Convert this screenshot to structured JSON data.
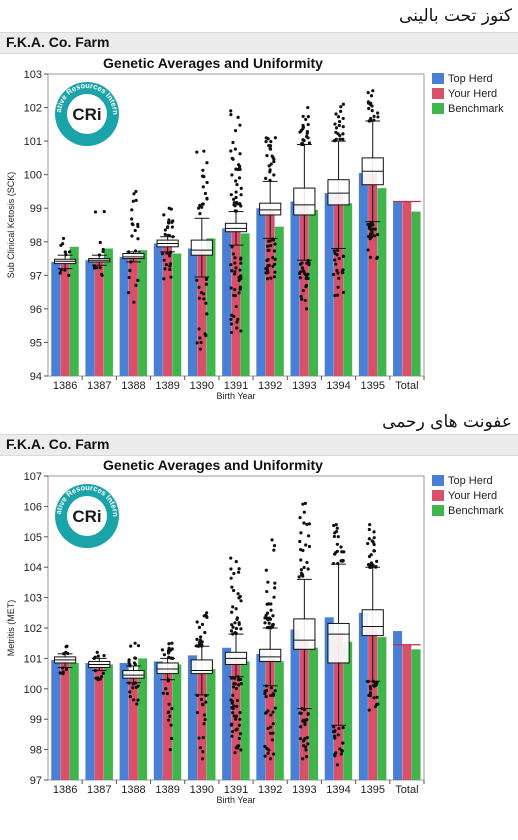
{
  "panels": [
    {
      "persian_title": "کتوز تحت بالینی",
      "farm_title": "F.K.A. Co. Farm",
      "logo": {
        "ring_text": "Cooperative Resources International",
        "center_text": "CRi"
      },
      "chart_data": {
        "type": "bar",
        "title": "Genetic Averages and Uniformity",
        "xlabel": "Birth Year",
        "ylabel": "Sub Clinical Ketosis (SCK)",
        "ylim": [
          94,
          103
        ],
        "yticks": [
          94,
          95,
          96,
          97,
          98,
          99,
          100,
          101,
          102,
          103
        ],
        "categories": [
          "1386",
          "1387",
          "1388",
          "1389",
          "1390",
          "1391",
          "1392",
          "1393",
          "1394",
          "1395",
          "Total"
        ],
        "legend_position": "top-right",
        "series": [
          {
            "name": "Top Herd",
            "color": "#4a7fd6",
            "values": [
              97.4,
              97.45,
              97.55,
              97.95,
              97.8,
              98.4,
              99.0,
              99.2,
              99.45,
              100.05,
              99.2
            ]
          },
          {
            "name": "Your Herd",
            "color": "#d9506a",
            "values": [
              97.4,
              97.45,
              97.6,
              97.9,
              97.75,
              98.35,
              98.95,
              99.15,
              99.45,
              100.05,
              99.2
            ]
          },
          {
            "name": "Benchmark",
            "color": "#3fb54c",
            "values": [
              97.85,
              97.8,
              97.75,
              97.65,
              98.1,
              98.25,
              98.45,
              98.95,
              99.15,
              99.6,
              98.9
            ]
          }
        ],
        "boxplots": [
          {
            "q1": 97.35,
            "median": 97.42,
            "q3": 97.48,
            "lo": 97.2,
            "hi": 97.6,
            "out_lo": 97.0,
            "out_hi": 98.1,
            "n": 10
          },
          {
            "q1": 97.4,
            "median": 97.45,
            "q3": 97.5,
            "lo": 97.3,
            "hi": 97.6,
            "out_lo": 97.0,
            "out_hi": 98.9,
            "n": 12
          },
          {
            "q1": 97.5,
            "median": 97.55,
            "q3": 97.65,
            "lo": 97.4,
            "hi": 97.7,
            "out_lo": 96.2,
            "out_hi": 99.5,
            "n": 22
          },
          {
            "q1": 97.85,
            "median": 97.95,
            "q3": 98.05,
            "lo": 97.7,
            "hi": 98.15,
            "out_lo": 96.9,
            "out_hi": 99.0,
            "n": 30
          },
          {
            "q1": 97.6,
            "median": 97.75,
            "q3": 98.05,
            "lo": 96.95,
            "hi": 98.7,
            "out_lo": 94.8,
            "out_hi": 100.7,
            "n": 35
          },
          {
            "q1": 98.3,
            "median": 98.4,
            "q3": 98.55,
            "lo": 97.9,
            "hi": 98.9,
            "out_lo": 95.3,
            "out_hi": 101.9,
            "n": 70
          },
          {
            "q1": 98.8,
            "median": 98.95,
            "q3": 99.15,
            "lo": 98.1,
            "hi": 99.8,
            "out_lo": 96.9,
            "out_hi": 101.1,
            "n": 50
          },
          {
            "q1": 98.8,
            "median": 99.1,
            "q3": 99.6,
            "lo": 97.45,
            "hi": 100.9,
            "out_lo": 96.0,
            "out_hi": 102.0,
            "n": 45
          },
          {
            "q1": 99.1,
            "median": 99.45,
            "q3": 99.85,
            "lo": 97.8,
            "hi": 101.0,
            "out_lo": 96.4,
            "out_hi": 102.1,
            "n": 40
          },
          {
            "q1": 99.7,
            "median": 100.1,
            "q3": 100.5,
            "lo": 98.6,
            "hi": 101.6,
            "out_lo": 97.5,
            "out_hi": 102.5,
            "n": 40
          }
        ]
      }
    },
    {
      "persian_title": "عفونت های رحمی",
      "farm_title": "F.K.A. Co. Farm",
      "logo": {
        "ring_text": "Cooperative Resources International",
        "center_text": "CRi"
      },
      "chart_data": {
        "type": "bar",
        "title": "Genetic Averages and Uniformity",
        "xlabel": "Birth Year",
        "ylabel": "Metritis (MET)",
        "ylim": [
          97,
          107
        ],
        "yticks": [
          97,
          98,
          99,
          100,
          101,
          102,
          103,
          104,
          105,
          106,
          107
        ],
        "categories": [
          "1386",
          "1387",
          "1388",
          "1389",
          "1390",
          "1391",
          "1392",
          "1393",
          "1394",
          "1395",
          "Total"
        ],
        "legend_position": "top-right",
        "series": [
          {
            "name": "Top Herd",
            "color": "#4a7fd6",
            "values": [
              100.95,
              100.85,
              100.85,
              100.9,
              101.1,
              101.35,
              101.15,
              101.95,
              102.35,
              102.5,
              101.9
            ]
          },
          {
            "name": "Your Herd",
            "color": "#d9506a",
            "values": [
              100.95,
              100.8,
              100.45,
              100.6,
              100.55,
              101.0,
              101.0,
              101.6,
              101.85,
              102.05,
              101.45
            ]
          },
          {
            "name": "Benchmark",
            "color": "#3fb54c",
            "values": [
              100.85,
              100.8,
              101.0,
              100.8,
              100.65,
              100.9,
              100.9,
              101.35,
              101.55,
              101.7,
              101.3
            ]
          }
        ],
        "boxplots": [
          {
            "q1": 100.85,
            "median": 100.95,
            "q3": 101.05,
            "lo": 100.7,
            "hi": 101.15,
            "out_lo": 100.5,
            "out_hi": 101.4,
            "n": 10
          },
          {
            "q1": 100.7,
            "median": 100.8,
            "q3": 100.9,
            "lo": 100.6,
            "hi": 101.0,
            "out_lo": 100.3,
            "out_hi": 101.2,
            "n": 12
          },
          {
            "q1": 100.35,
            "median": 100.45,
            "q3": 100.6,
            "lo": 100.2,
            "hi": 100.75,
            "out_lo": 99.5,
            "out_hi": 101.5,
            "n": 22
          },
          {
            "q1": 100.5,
            "median": 100.65,
            "q3": 100.85,
            "lo": 100.3,
            "hi": 101.0,
            "out_lo": 98.0,
            "out_hi": 101.5,
            "n": 28
          },
          {
            "q1": 100.5,
            "median": 100.6,
            "q3": 100.95,
            "lo": 99.8,
            "hi": 101.4,
            "out_lo": 97.7,
            "out_hi": 102.5,
            "n": 35
          },
          {
            "q1": 100.8,
            "median": 101.0,
            "q3": 101.2,
            "lo": 100.4,
            "hi": 101.8,
            "out_lo": 97.9,
            "out_hi": 104.3,
            "n": 70
          },
          {
            "q1": 100.9,
            "median": 101.05,
            "q3": 101.3,
            "lo": 100.1,
            "hi": 102.0,
            "out_lo": 97.7,
            "out_hi": 104.9,
            "n": 60
          },
          {
            "q1": 101.3,
            "median": 101.6,
            "q3": 102.3,
            "lo": 99.35,
            "hi": 103.6,
            "out_lo": 97.7,
            "out_hi": 106.1,
            "n": 50
          },
          {
            "q1": 100.85,
            "median": 101.8,
            "q3": 102.15,
            "lo": 98.8,
            "hi": 104.1,
            "out_lo": 97.5,
            "out_hi": 105.4,
            "n": 40
          },
          {
            "q1": 101.75,
            "median": 102.05,
            "q3": 102.6,
            "lo": 100.25,
            "hi": 104.0,
            "out_lo": 99.3,
            "out_hi": 105.4,
            "n": 45
          }
        ]
      }
    }
  ]
}
